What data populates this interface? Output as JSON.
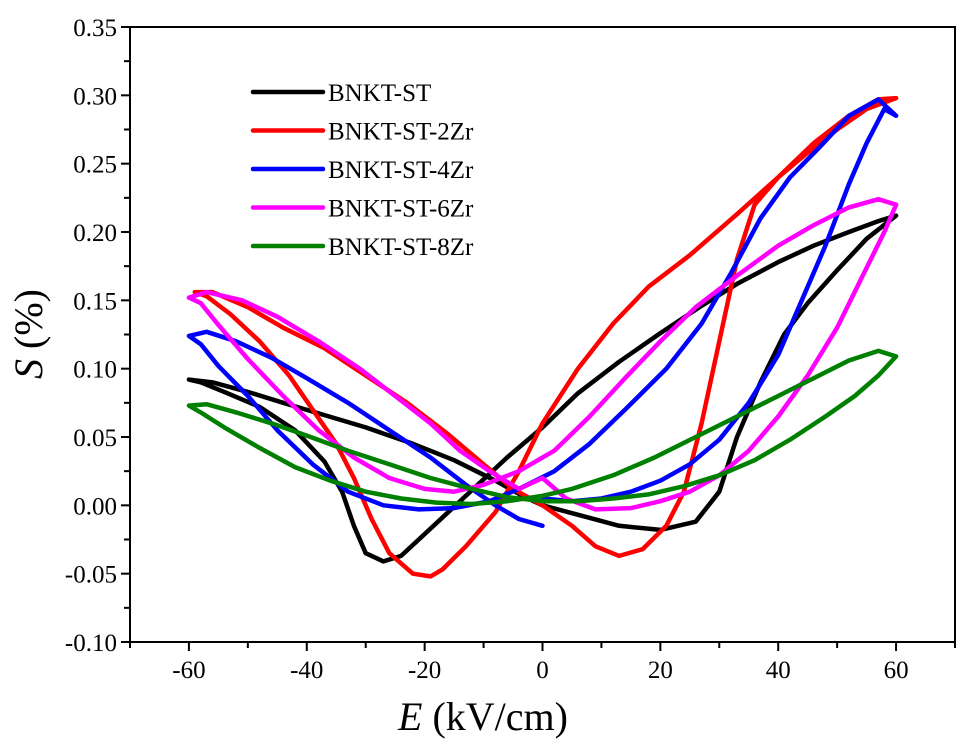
{
  "chart_data": {
    "type": "line",
    "title": "",
    "xlabel": {
      "symbol": "E",
      "unit": " (kV/cm)"
    },
    "ylabel": {
      "symbol": "S",
      "unit": " (%)"
    },
    "xlim": [
      -70,
      70
    ],
    "ylim": [
      -0.1,
      0.35
    ],
    "x_ticks": [
      -60,
      -40,
      -20,
      0,
      20,
      40,
      60
    ],
    "x_tick_labels": [
      "-60",
      "-40",
      "-20",
      "0",
      "20",
      "40",
      "60"
    ],
    "x_minor_ticks": [
      -70,
      -50,
      -30,
      -10,
      10,
      30,
      50,
      70
    ],
    "y_ticks": [
      -0.1,
      -0.05,
      0.0,
      0.05,
      0.1,
      0.15,
      0.2,
      0.25,
      0.3,
      0.35
    ],
    "y_tick_labels": [
      "-0.10",
      "-0.05",
      "0.00",
      "0.05",
      "0.10",
      "0.15",
      "0.20",
      "0.25",
      "0.30",
      "0.35"
    ],
    "y_minor_ticks": [
      -0.075,
      -0.025,
      0.025,
      0.075,
      0.125,
      0.175,
      0.225,
      0.275,
      0.325
    ],
    "grid": false,
    "legend_position": "top-left",
    "series": [
      {
        "name": "BNKT-ST",
        "color": "#000000",
        "points": [
          [
            0,
            0.0
          ],
          [
            7,
            -0.008
          ],
          [
            13,
            -0.015
          ],
          [
            20,
            -0.018
          ],
          [
            26,
            -0.012
          ],
          [
            30,
            0.01
          ],
          [
            33,
            0.05
          ],
          [
            37,
            0.09
          ],
          [
            41,
            0.125
          ],
          [
            45,
            0.148
          ],
          [
            50,
            0.172
          ],
          [
            55,
            0.195
          ],
          [
            60,
            0.212
          ],
          [
            57,
            0.208
          ],
          [
            52,
            0.2
          ],
          [
            46,
            0.19
          ],
          [
            40,
            0.178
          ],
          [
            33,
            0.162
          ],
          [
            27,
            0.146
          ],
          [
            20,
            0.126
          ],
          [
            13,
            0.105
          ],
          [
            6,
            0.082
          ],
          [
            0,
            0.057
          ],
          [
            -6,
            0.035
          ],
          [
            -11,
            0.015
          ],
          [
            -16,
            -0.005
          ],
          [
            -21,
            -0.025
          ],
          [
            -24,
            -0.037
          ],
          [
            -27,
            -0.041
          ],
          [
            -30,
            -0.035
          ],
          [
            -32,
            -0.015
          ],
          [
            -34,
            0.01
          ],
          [
            -37,
            0.032
          ],
          [
            -42,
            0.055
          ],
          [
            -48,
            0.072
          ],
          [
            -54,
            0.083
          ],
          [
            -58,
            0.09
          ],
          [
            -60,
            0.092
          ],
          [
            -56,
            0.09
          ],
          [
            -50,
            0.083
          ],
          [
            -44,
            0.075
          ],
          [
            -37,
            0.066
          ],
          [
            -30,
            0.057
          ],
          [
            -22,
            0.045
          ],
          [
            -15,
            0.033
          ],
          [
            -8,
            0.018
          ],
          [
            -3,
            0.006
          ],
          [
            0,
            0.0
          ]
        ]
      },
      {
        "name": "BNKT-ST-2Zr",
        "color": "#ff0000",
        "points": [
          [
            0,
            0.0
          ],
          [
            5,
            -0.015
          ],
          [
            9,
            -0.03
          ],
          [
            13,
            -0.037
          ],
          [
            17,
            -0.032
          ],
          [
            21,
            -0.015
          ],
          [
            24,
            0.01
          ],
          [
            27,
            0.06
          ],
          [
            30,
            0.12
          ],
          [
            33,
            0.18
          ],
          [
            36,
            0.22
          ],
          [
            40,
            0.24
          ],
          [
            45,
            0.258
          ],
          [
            50,
            0.275
          ],
          [
            55,
            0.29
          ],
          [
            60,
            0.298
          ],
          [
            57,
            0.297
          ],
          [
            52,
            0.285
          ],
          [
            46,
            0.265
          ],
          [
            40,
            0.24
          ],
          [
            33,
            0.213
          ],
          [
            25,
            0.183
          ],
          [
            18,
            0.16
          ],
          [
            12,
            0.133
          ],
          [
            6,
            0.1
          ],
          [
            0,
            0.06
          ],
          [
            -4,
            0.025
          ],
          [
            -8,
            -0.005
          ],
          [
            -13,
            -0.03
          ],
          [
            -17,
            -0.047
          ],
          [
            -19,
            -0.052
          ],
          [
            -22,
            -0.05
          ],
          [
            -26,
            -0.035
          ],
          [
            -29,
            -0.01
          ],
          [
            -32,
            0.02
          ],
          [
            -35,
            0.045
          ],
          [
            -39,
            0.07
          ],
          [
            -43,
            0.095
          ],
          [
            -48,
            0.12
          ],
          [
            -53,
            0.14
          ],
          [
            -57,
            0.153
          ],
          [
            -59,
            0.156
          ],
          [
            -56,
            0.156
          ],
          [
            -50,
            0.145
          ],
          [
            -44,
            0.13
          ],
          [
            -37,
            0.115
          ],
          [
            -30,
            0.095
          ],
          [
            -23,
            0.075
          ],
          [
            -16,
            0.052
          ],
          [
            -10,
            0.03
          ],
          [
            -5,
            0.012
          ],
          [
            0,
            0.0
          ]
        ]
      },
      {
        "name": "BNKT-ST-4Zr",
        "color": "#0000ff",
        "points": [
          [
            0,
            0.005
          ],
          [
            5,
            0.003
          ],
          [
            10,
            0.005
          ],
          [
            15,
            0.01
          ],
          [
            20,
            0.018
          ],
          [
            25,
            0.03
          ],
          [
            30,
            0.048
          ],
          [
            35,
            0.075
          ],
          [
            40,
            0.11
          ],
          [
            44,
            0.15
          ],
          [
            48,
            0.19
          ],
          [
            52,
            0.235
          ],
          [
            55,
            0.265
          ],
          [
            58,
            0.29
          ],
          [
            60,
            0.285
          ],
          [
            57,
            0.297
          ],
          [
            52,
            0.285
          ],
          [
            47,
            0.262
          ],
          [
            42,
            0.24
          ],
          [
            37,
            0.21
          ],
          [
            32,
            0.17
          ],
          [
            27,
            0.133
          ],
          [
            21,
            0.1
          ],
          [
            14,
            0.07
          ],
          [
            8,
            0.045
          ],
          [
            2,
            0.025
          ],
          [
            -4,
            0.012
          ],
          [
            -9,
            0.003
          ],
          [
            -15,
            -0.002
          ],
          [
            -21,
            -0.003
          ],
          [
            -27,
            0.0
          ],
          [
            -33,
            0.01
          ],
          [
            -39,
            0.03
          ],
          [
            -45,
            0.055
          ],
          [
            -50,
            0.08
          ],
          [
            -55,
            0.102
          ],
          [
            -58,
            0.118
          ],
          [
            -60,
            0.124
          ],
          [
            -57,
            0.127
          ],
          [
            -52,
            0.12
          ],
          [
            -46,
            0.108
          ],
          [
            -40,
            0.093
          ],
          [
            -33,
            0.075
          ],
          [
            -26,
            0.055
          ],
          [
            -19,
            0.035
          ],
          [
            -13,
            0.015
          ],
          [
            -8,
            0.0
          ],
          [
            -4,
            -0.01
          ],
          [
            0,
            -0.015
          ]
        ]
      },
      {
        "name": "BNKT-ST-6Zr",
        "color": "#ff00ff",
        "points": [
          [
            0,
            0.02
          ],
          [
            4,
            0.005
          ],
          [
            9,
            -0.003
          ],
          [
            15,
            -0.002
          ],
          [
            20,
            0.003
          ],
          [
            25,
            0.01
          ],
          [
            30,
            0.022
          ],
          [
            35,
            0.04
          ],
          [
            40,
            0.065
          ],
          [
            45,
            0.095
          ],
          [
            50,
            0.13
          ],
          [
            54,
            0.165
          ],
          [
            58,
            0.2
          ],
          [
            60,
            0.22
          ],
          [
            57,
            0.224
          ],
          [
            52,
            0.218
          ],
          [
            46,
            0.205
          ],
          [
            40,
            0.19
          ],
          [
            33,
            0.168
          ],
          [
            26,
            0.145
          ],
          [
            20,
            0.12
          ],
          [
            14,
            0.093
          ],
          [
            8,
            0.065
          ],
          [
            2,
            0.04
          ],
          [
            -4,
            0.025
          ],
          [
            -10,
            0.015
          ],
          [
            -15,
            0.01
          ],
          [
            -20,
            0.012
          ],
          [
            -26,
            0.02
          ],
          [
            -32,
            0.035
          ],
          [
            -38,
            0.055
          ],
          [
            -44,
            0.08
          ],
          [
            -50,
            0.107
          ],
          [
            -55,
            0.132
          ],
          [
            -58,
            0.148
          ],
          [
            -60,
            0.152
          ],
          [
            -57,
            0.156
          ],
          [
            -51,
            0.15
          ],
          [
            -45,
            0.138
          ],
          [
            -38,
            0.12
          ],
          [
            -31,
            0.1
          ],
          [
            -25,
            0.08
          ],
          [
            -19,
            0.06
          ],
          [
            -14,
            0.04
          ],
          [
            -9,
            0.025
          ],
          [
            -4,
            0.012
          ],
          [
            0,
            0.02
          ]
        ]
      },
      {
        "name": "BNKT-ST-8Zr",
        "color": "#008000",
        "points": [
          [
            0,
            0.003
          ],
          [
            6,
            0.003
          ],
          [
            12,
            0.005
          ],
          [
            18,
            0.008
          ],
          [
            24,
            0.014
          ],
          [
            30,
            0.022
          ],
          [
            36,
            0.033
          ],
          [
            42,
            0.048
          ],
          [
            48,
            0.065
          ],
          [
            53,
            0.08
          ],
          [
            57,
            0.095
          ],
          [
            60,
            0.109
          ],
          [
            57,
            0.113
          ],
          [
            52,
            0.106
          ],
          [
            46,
            0.093
          ],
          [
            40,
            0.08
          ],
          [
            33,
            0.065
          ],
          [
            26,
            0.05
          ],
          [
            19,
            0.035
          ],
          [
            12,
            0.022
          ],
          [
            5,
            0.012
          ],
          [
            0,
            0.007
          ],
          [
            -6,
            0.003
          ],
          [
            -12,
            0.001
          ],
          [
            -18,
            0.002
          ],
          [
            -24,
            0.005
          ],
          [
            -30,
            0.01
          ],
          [
            -36,
            0.018
          ],
          [
            -42,
            0.028
          ],
          [
            -48,
            0.042
          ],
          [
            -54,
            0.057
          ],
          [
            -58,
            0.068
          ],
          [
            -60,
            0.073
          ],
          [
            -57,
            0.074
          ],
          [
            -52,
            0.068
          ],
          [
            -46,
            0.06
          ],
          [
            -40,
            0.051
          ],
          [
            -33,
            0.04
          ],
          [
            -26,
            0.03
          ],
          [
            -19,
            0.02
          ],
          [
            -12,
            0.012
          ],
          [
            -6,
            0.006
          ],
          [
            0,
            0.003
          ]
        ]
      }
    ]
  }
}
